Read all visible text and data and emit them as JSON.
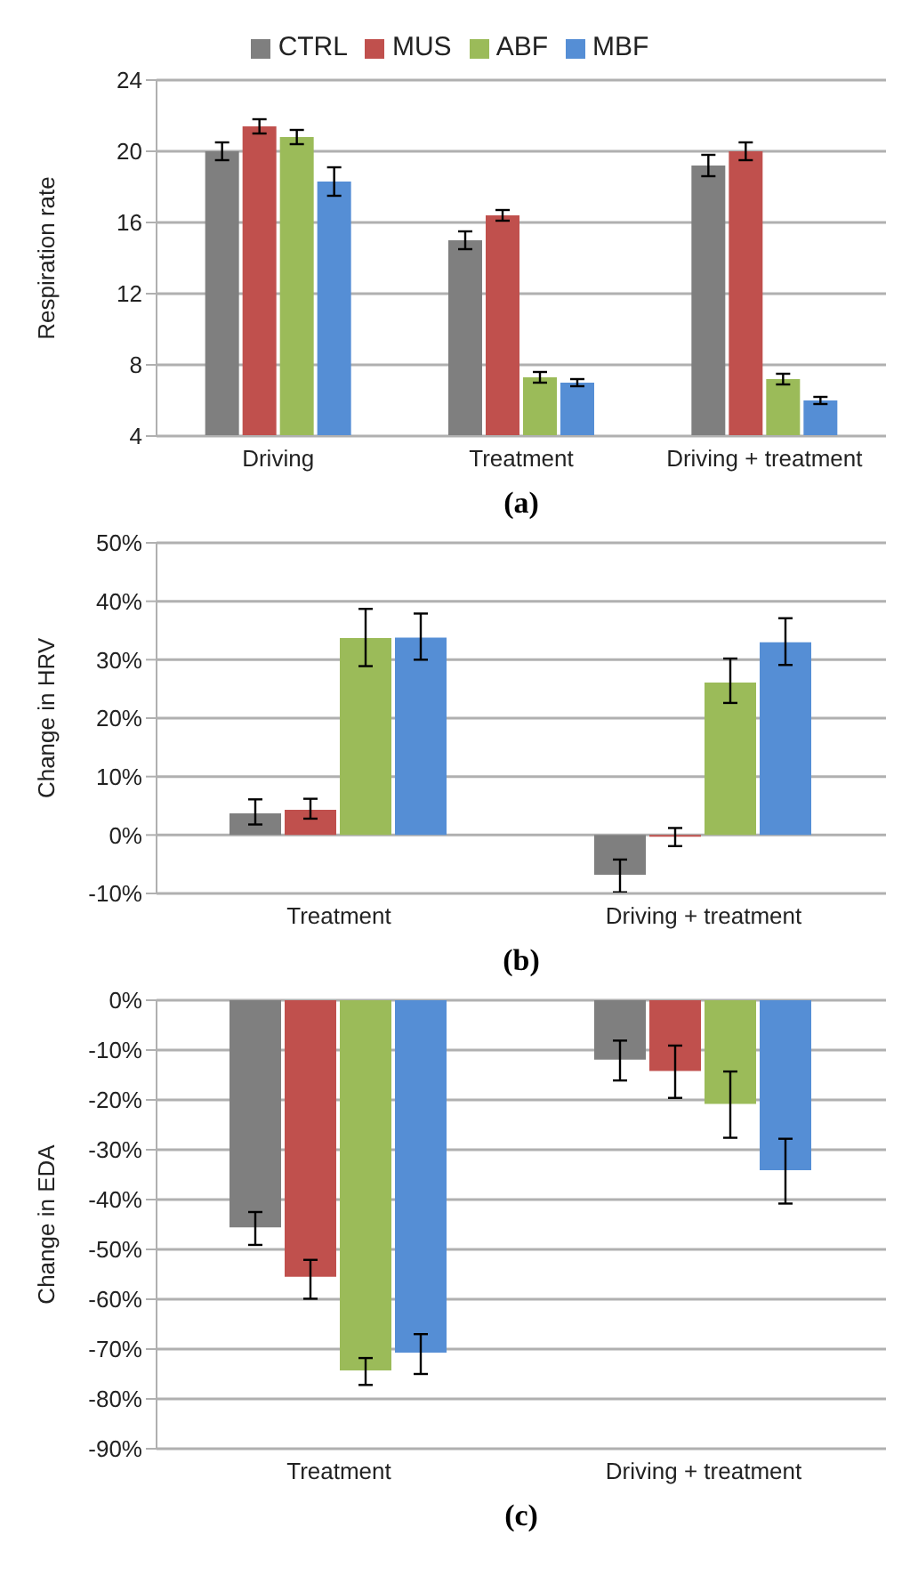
{
  "chart_data": [
    {
      "type": "bar",
      "ylabel": "Respiration rate",
      "annotations": [
        "(a)"
      ],
      "categories": [
        "Driving",
        "Treatment",
        "Driving + treatment"
      ],
      "ylim": [
        4,
        24
      ],
      "yticks": [
        4,
        8,
        12,
        16,
        20,
        24
      ],
      "grid": "y",
      "legend": "top",
      "series": [
        {
          "name": "CTRL",
          "color": "#7f7f7f",
          "values": [
            20.0,
            15.0,
            19.2
          ],
          "errors": [
            0.5,
            0.5,
            0.6
          ]
        },
        {
          "name": "MUS",
          "color": "#c0504d",
          "values": [
            21.4,
            16.4,
            20.0
          ],
          "errors": [
            0.4,
            0.3,
            0.5
          ]
        },
        {
          "name": "ABF",
          "color": "#9bbb59",
          "values": [
            20.8,
            7.3,
            7.2
          ],
          "errors": [
            0.4,
            0.3,
            0.3
          ]
        },
        {
          "name": "MBF",
          "color": "#558ed5",
          "values": [
            18.3,
            7.0,
            6.0
          ],
          "errors": [
            0.8,
            0.2,
            0.2
          ]
        }
      ]
    },
    {
      "type": "bar",
      "ylabel": "Change in HRV",
      "annotations": [
        "(b)"
      ],
      "categories": [
        "Treatment",
        "Driving + treatment"
      ],
      "ylim": [
        -10,
        50
      ],
      "yticks": [
        {
          "value": -10,
          "label": "-10%"
        },
        {
          "value": 0,
          "label": "0%"
        },
        {
          "value": 10,
          "label": "10%"
        },
        {
          "value": 20,
          "label": "20%"
        },
        {
          "value": 30,
          "label": "30%"
        },
        {
          "value": 40,
          "label": "40%"
        },
        {
          "value": 50,
          "label": "50%"
        }
      ],
      "grid": "y",
      "legend": false,
      "series": [
        {
          "color": "#7f7f7f",
          "values": [
            3.7,
            -6.8
          ],
          "errors": [
            [
              1.8,
              6.1
            ],
            [
              -9.8,
              -4.2
            ]
          ]
        },
        {
          "color": "#c0504d",
          "values": [
            4.3,
            -0.3
          ],
          "errors": [
            [
              2.8,
              6.2
            ],
            [
              -1.9,
              1.2
            ]
          ]
        },
        {
          "color": "#9bbb59",
          "values": [
            33.7,
            26.1
          ],
          "errors": [
            [
              28.9,
              38.7
            ],
            [
              22.6,
              30.2
            ]
          ]
        },
        {
          "color": "#558ed5",
          "values": [
            33.8,
            33.0
          ],
          "errors": [
            [
              30.0,
              37.9
            ],
            [
              29.1,
              37.1
            ]
          ]
        }
      ]
    },
    {
      "type": "bar",
      "ylabel": "Change in EDA",
      "annotations": [
        "(c)"
      ],
      "categories": [
        "Treatment",
        "Driving + treatment"
      ],
      "ylim": [
        -90,
        0
      ],
      "yticks": [
        {
          "value": -90,
          "label": "-90%"
        },
        {
          "value": -80,
          "label": "-80%"
        },
        {
          "value": -70,
          "label": "-70%"
        },
        {
          "value": -60,
          "label": "-60%"
        },
        {
          "value": -50,
          "label": "-50%"
        },
        {
          "value": -40,
          "label": "-40%"
        },
        {
          "value": -30,
          "label": "-30%"
        },
        {
          "value": -20,
          "label": "-20%"
        },
        {
          "value": -10,
          "label": "-10%"
        },
        {
          "value": 0,
          "label": "0%"
        }
      ],
      "grid": "y",
      "legend": false,
      "series": [
        {
          "color": "#7f7f7f",
          "values": [
            -45.6,
            -11.9
          ],
          "errors": [
            [
              -49.1,
              -42.5
            ],
            [
              -16.1,
              -8.1
            ]
          ]
        },
        {
          "color": "#c0504d",
          "values": [
            -55.5,
            -14.2
          ],
          "errors": [
            [
              -59.9,
              -52.1
            ],
            [
              -19.6,
              -9.1
            ]
          ]
        },
        {
          "color": "#9bbb59",
          "values": [
            -74.3,
            -20.8
          ],
          "errors": [
            [
              -77.2,
              -71.8
            ],
            [
              -27.6,
              -14.3
            ]
          ]
        },
        {
          "color": "#558ed5",
          "values": [
            -70.7,
            -34.1
          ],
          "errors": [
            [
              -75.0,
              -67.0
            ],
            [
              -40.8,
              -27.8
            ]
          ]
        }
      ]
    }
  ]
}
